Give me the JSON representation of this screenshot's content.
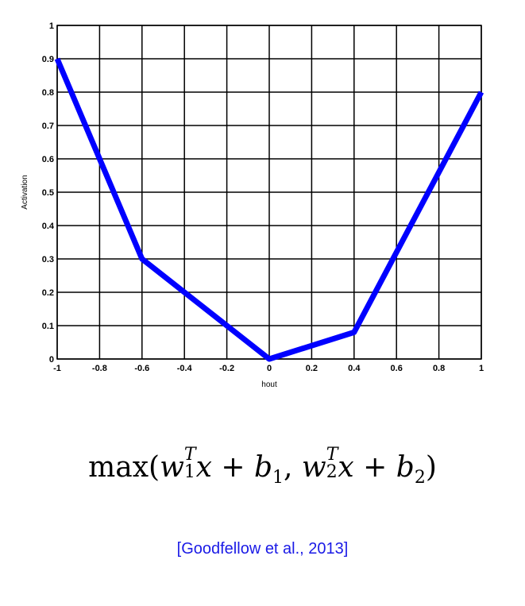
{
  "chart_data": {
    "type": "line",
    "xlabel": "hout",
    "ylabel": "Activation",
    "xlim": [
      -1,
      1
    ],
    "ylim": [
      0,
      1
    ],
    "xticks": [
      -1,
      -0.8,
      -0.6,
      -0.4,
      -0.2,
      0,
      0.2,
      0.4,
      0.6,
      0.8,
      1
    ],
    "xtick_labels": [
      "-1",
      "-0.8",
      "-0.6",
      "-0.4",
      "-0.2",
      "0",
      "0.2",
      "0.4",
      "0.6",
      "0.8",
      "1"
    ],
    "yticks": [
      0,
      0.1,
      0.2,
      0.3,
      0.4,
      0.5,
      0.6,
      0.7,
      0.8,
      0.9,
      1
    ],
    "ytick_labels": [
      "0",
      "0.1",
      "0.2",
      "0.3",
      "0.4",
      "0.5",
      "0.6",
      "0.7",
      "0.8",
      "0.9",
      "1"
    ],
    "grid": true,
    "series": [
      {
        "color": "#0000ff",
        "x": [
          -1,
          -0.6,
          0,
          0.4,
          1
        ],
        "y": [
          0.9,
          0.3,
          0,
          0.08,
          0.8
        ]
      }
    ]
  },
  "formula": {
    "fn": "max",
    "open": "(",
    "w": "w",
    "sup": "T",
    "sub1": "1",
    "x": "x",
    "plus": " + ",
    "b": "b",
    "comma": ", ",
    "sub2": "2",
    "close": ")"
  },
  "citation": "[Goodfellow et al., 2013]"
}
